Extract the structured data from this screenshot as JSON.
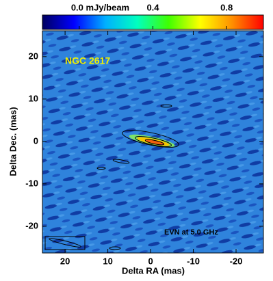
{
  "chart_data": {
    "type": "image",
    "annotations": [
      "NGC 2617",
      "EVN at 5.0 GHz"
    ],
    "x_label": "Delta RA (mas)",
    "y_label": "Delta Dec. (mas)",
    "xlim": [
      25.3,
      -26.4
    ],
    "xticks": [
      20,
      10,
      0,
      -10,
      -20
    ],
    "ylim": [
      -26.3,
      26.1
    ],
    "yticks": [
      20,
      10,
      0,
      -10,
      -20
    ],
    "colorbar": {
      "lim": [
        -0.2,
        1.0
      ],
      "ticks": [
        {
          "value": 0,
          "label": "0.0 mJy/beam"
        },
        0.4,
        0.8
      ],
      "colors": [
        "#000060",
        "#0000ff",
        "#00b0ff",
        "#00ffc0",
        "#40ff00",
        "#ffff00",
        "#ff9000",
        "#ff0000"
      ]
    }
  }
}
